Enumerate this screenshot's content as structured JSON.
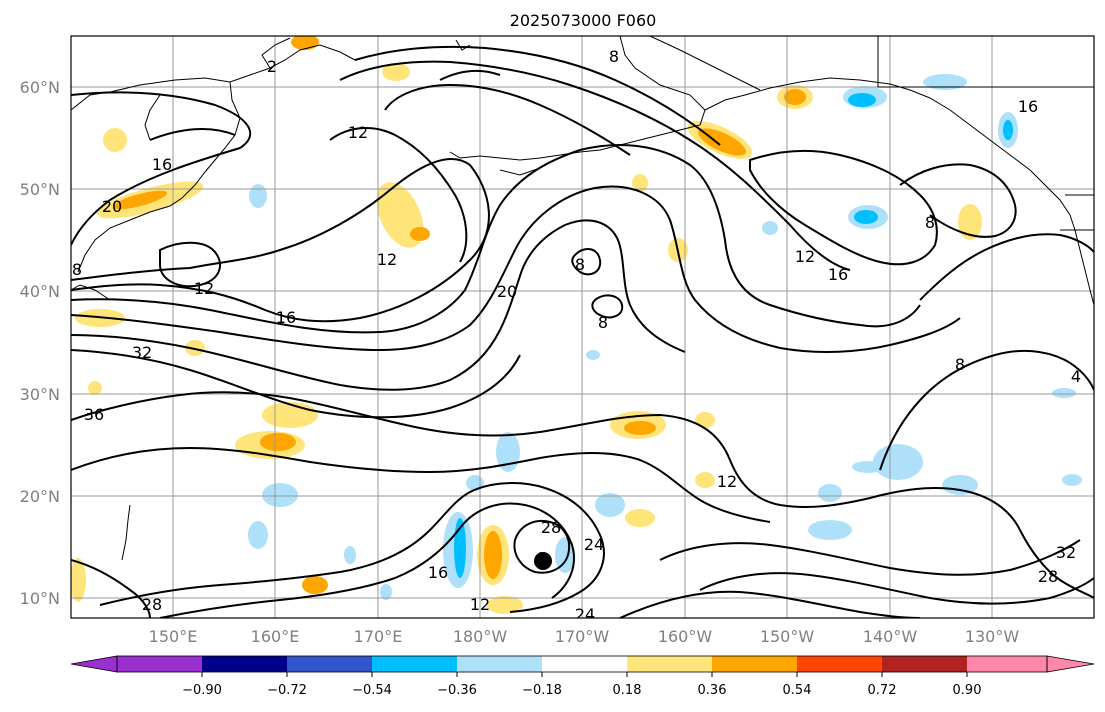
{
  "title": "2025073000 F060",
  "longitude_labels": [
    "150°E",
    "160°E",
    "170°E",
    "180°W",
    "170°W",
    "160°W",
    "150°W",
    "140°W",
    "130°W"
  ],
  "latitude_labels": [
    "60°N",
    "50°N",
    "40°N",
    "30°N",
    "20°N",
    "10°N"
  ],
  "contour_labels": [
    "2",
    "8",
    "16",
    "12",
    "16",
    "20",
    "12",
    "16",
    "8",
    "20",
    "8",
    "8",
    "12",
    "12",
    "8",
    "16",
    "32",
    "36",
    "8",
    "4",
    "12",
    "28",
    "24",
    "16",
    "12",
    "28",
    "24",
    "32",
    "28"
  ],
  "colorbar": {
    "tick_labels": [
      "−0.90",
      "−0.72",
      "−0.54",
      "−0.36",
      "−0.18",
      "0.18",
      "0.36",
      "0.54",
      "0.72",
      "0.90"
    ],
    "colors": [
      "#9b30d0",
      "#00008b",
      "#3355cc",
      "#00bfff",
      "#aee0fa",
      "#ffffff",
      "#ffe47a",
      "#ffa500",
      "#ff4500",
      "#b22222",
      "#ff88aa"
    ]
  },
  "storm_marker": "storm-center"
}
